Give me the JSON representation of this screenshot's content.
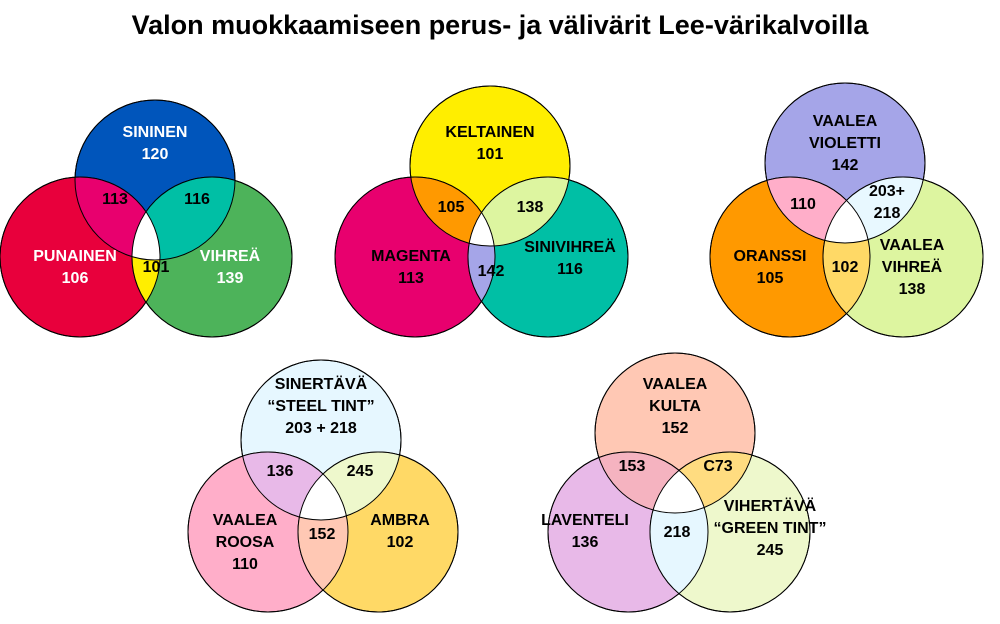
{
  "title": "Valon muokkaamiseen perus- ja välivärit Lee-värikalvoilla",
  "diagrams": [
    {
      "name": "rgb",
      "circles": [
        {
          "lines": [
            "SININEN",
            "120"
          ],
          "color": "#0055bb",
          "text_color": "#ffffff"
        },
        {
          "lines": [
            "PUNAINEN",
            "106"
          ],
          "color": "#e8003c",
          "text_color": "#ffffff"
        },
        {
          "lines": [
            "VIHREÄ",
            "139"
          ],
          "color": "#4db35a",
          "text_color": "#ffffff"
        }
      ],
      "overlaps": [
        {
          "label": "113",
          "color": "#e8006e"
        },
        {
          "label": "116",
          "color": "#00bfa5"
        },
        {
          "label": "101",
          "color": "#ffee00"
        }
      ]
    },
    {
      "name": "cmy",
      "circles": [
        {
          "lines": [
            "KELTAINEN",
            "101"
          ],
          "color": "#ffee00",
          "text_color": "#000000"
        },
        {
          "lines": [
            "MAGENTA",
            "113"
          ],
          "color": "#e8006e",
          "text_color": "#000000"
        },
        {
          "lines": [
            "SINIVIHREÄ",
            "116"
          ],
          "color": "#00bfa5",
          "text_color": "#000000"
        }
      ],
      "overlaps": [
        {
          "label": "105",
          "color": "#ff9900"
        },
        {
          "label": "138",
          "color": "#ddf5a0"
        },
        {
          "label": "142",
          "color": "#a5a5e8"
        }
      ]
    },
    {
      "name": "secondary",
      "circles": [
        {
          "lines": [
            "VAALEA",
            "VIOLETTI",
            "142"
          ],
          "color": "#a5a5e8",
          "text_color": "#000000"
        },
        {
          "lines": [
            "ORANSSI",
            "105"
          ],
          "color": "#ff9900",
          "text_color": "#000000"
        },
        {
          "lines": [
            "VAALEA",
            "VIHREÄ",
            "138"
          ],
          "color": "#ddf5a0",
          "text_color": "#000000"
        }
      ],
      "overlaps": [
        {
          "label": "110",
          "color": "#ffaec9"
        },
        {
          "lines": [
            "203+",
            "218"
          ],
          "color": "#e8f8ff"
        },
        {
          "label": "102",
          "color": "#ffd966"
        }
      ]
    },
    {
      "name": "tints",
      "circles": [
        {
          "lines": [
            "SINERTÄVÄ",
            "“STEEL TINT”",
            "203 + 218"
          ],
          "color": "#e6f7ff",
          "text_color": "#000000"
        },
        {
          "lines": [
            "VAALEA",
            "ROOSA",
            "110"
          ],
          "color": "#ffaec9",
          "text_color": "#000000"
        },
        {
          "lines": [
            "AMBRA",
            "102"
          ],
          "color": "#ffd966",
          "text_color": "#000000"
        }
      ],
      "overlaps": [
        {
          "label": "136",
          "color": "#e8b9e8"
        },
        {
          "label": "245",
          "color": "#eef8cc"
        },
        {
          "label": "152",
          "color": "#ffc8b4"
        }
      ]
    },
    {
      "name": "pastels",
      "circles": [
        {
          "lines": [
            "VAALEA",
            "KULTA",
            "152"
          ],
          "color": "#ffc8b4",
          "text_color": "#000000"
        },
        {
          "lines": [
            "LAVENTELI",
            "136"
          ],
          "color": "#e8b9e8",
          "text_color": "#000000"
        },
        {
          "lines": [
            "VIHERTÄVÄ",
            "“GREEN TINT”",
            "245"
          ],
          "color": "#eef8cc",
          "text_color": "#000000"
        }
      ],
      "overlaps": [
        {
          "label": "153",
          "color": "#f5b3c0"
        },
        {
          "label": "C73",
          "color": "#ffdc80"
        },
        {
          "label": "218",
          "color": "#e6f7ff"
        }
      ]
    }
  ]
}
